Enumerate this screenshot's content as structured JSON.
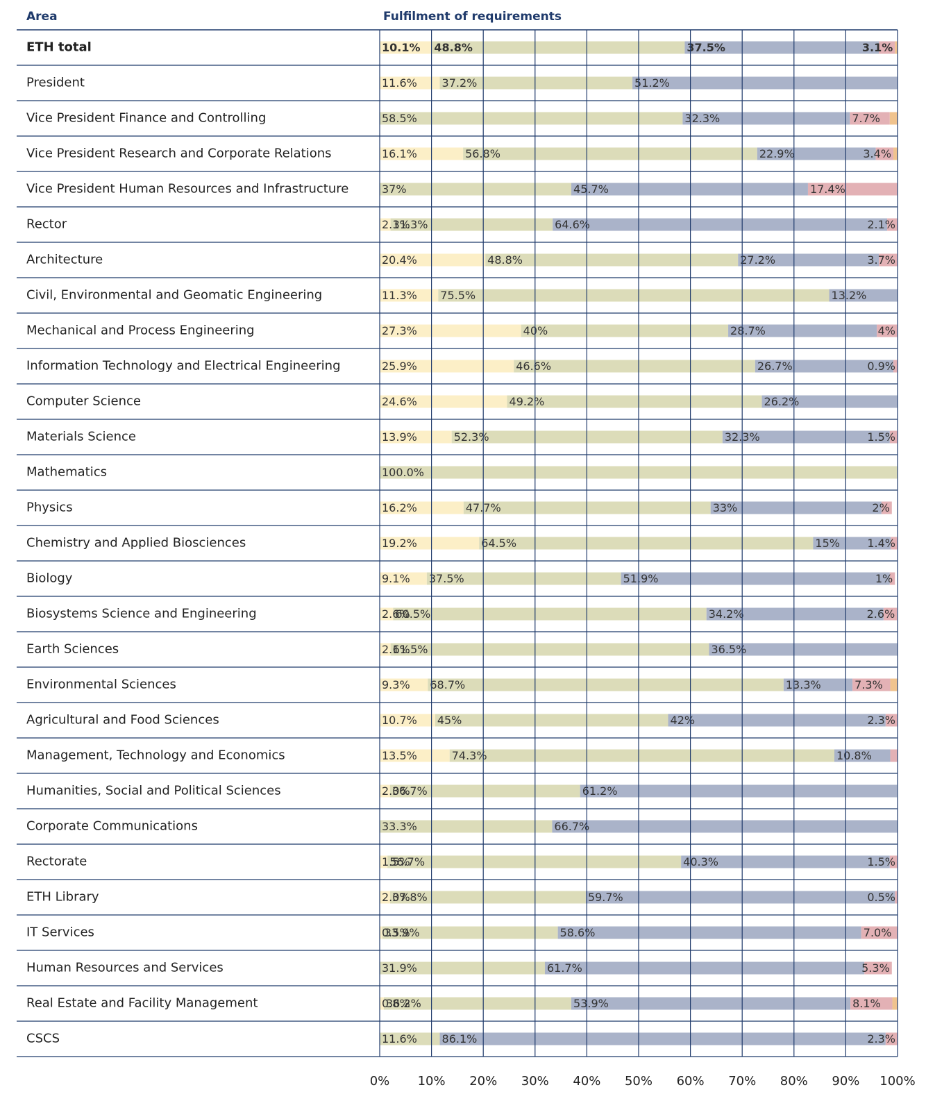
{
  "chart_data": {
    "type": "stacked-bar-horizontal",
    "category_header": "Area",
    "title": "Fulfilment of requirements",
    "bold_first_row": true,
    "categories": [
      "ETH total",
      "President",
      "Vice President Finance and Controlling",
      "Vice President Research and Corporate Relations",
      "Vice President Human Resources and Infrastructure",
      "Rector",
      "Architecture",
      "Civil, Environmental and Geomatic Engineering",
      "Mechanical and Process Engineering",
      "Information Technology and Electrical Engineering",
      "Computer Science",
      "Materials Science",
      "Mathematics",
      "Physics",
      "Chemistry and Applied Biosciences",
      "Biology",
      "Biosystems Science and Engineering",
      "Earth Sciences",
      "Environmental Sciences",
      "Agricultural and Food Sciences",
      "Management, Technology and Economics",
      "Humanities, Social and Political Sciences",
      "Corporate Communications",
      "Rectorate",
      "ETH Library",
      "IT Services",
      "Human Resources and Services",
      "Real Estate and Facility Management",
      "CSCS"
    ],
    "series": [
      {
        "color": "#fcefc7",
        "values": [
          10.1,
          11.6,
          null,
          16.1,
          null,
          2.1,
          20.4,
          11.3,
          27.3,
          25.9,
          24.6,
          13.9,
          null,
          16.2,
          19.2,
          9.1,
          2.6,
          2.1,
          9.3,
          10.7,
          13.5,
          2.0,
          null,
          1.5,
          2.0,
          0.5,
          null,
          0.8,
          null
        ],
        "value_labels": [
          "10.1%",
          "11.6%",
          null,
          "16.1%",
          null,
          "2.1%",
          "20.4%",
          "11.3%",
          "27.3%",
          "25.9%",
          "24.6%",
          "13.9%",
          null,
          "16.2%",
          "19.2%",
          "9.1%",
          "2.6%",
          "2.1%",
          "9.3%",
          "10.7%",
          "13.5%",
          "2.0%",
          null,
          "1.5%",
          "2.0%",
          "0.5%",
          null,
          "0.8%",
          null
        ]
      },
      {
        "color": "#dcdcb9",
        "values": [
          48.8,
          37.2,
          58.5,
          56.8,
          37,
          31.3,
          48.8,
          75.5,
          40,
          46.6,
          49.2,
          52.3,
          100.0,
          47.7,
          64.5,
          37.5,
          60.5,
          61.5,
          68.7,
          45,
          74.3,
          36.7,
          33.3,
          56.7,
          37.8,
          33.9,
          31.9,
          36.2,
          11.6
        ],
        "value_labels": [
          "48.8%",
          "37.2%",
          "58.5%",
          "56.8%",
          "37%",
          "31.3%",
          "48.8%",
          "75.5%",
          "40%",
          "46.6%",
          "49.2%",
          "52.3%",
          "100.0%",
          "47.7%",
          "64.5%",
          "37.5%",
          "60.5%",
          "61.5%",
          "68.7%",
          "45%",
          "74.3%",
          "36.7%",
          "33.3%",
          "56.7%",
          "37.8%",
          "33.9%",
          "31.9%",
          "36.2%",
          "11.6%"
        ]
      },
      {
        "color": "#aab3c9",
        "values": [
          37.5,
          51.2,
          32.3,
          22.9,
          45.7,
          64.6,
          27.2,
          13.2,
          28.7,
          26.7,
          26.2,
          32.3,
          null,
          33,
          15,
          51.9,
          34.2,
          36.5,
          13.3,
          42,
          10.8,
          61.2,
          66.7,
          40.3,
          59.7,
          58.6,
          61.7,
          53.9,
          86.1
        ],
        "value_labels": [
          "37.5%",
          "51.2%",
          "32.3%",
          "22.9%",
          "45.7%",
          "64.6%",
          "27.2%",
          "13.2%",
          "28.7%",
          "26.7%",
          "26.2%",
          "32.3%",
          null,
          "33%",
          "15%",
          "51.9%",
          "34.2%",
          "36.5%",
          "13.3%",
          "42%",
          "10.8%",
          "61.2%",
          "66.7%",
          "40.3%",
          "59.7%",
          "58.6%",
          "61.7%",
          "53.9%",
          "86.1%"
        ]
      },
      {
        "color": "#e3b1b5",
        "values": [
          3.1,
          null,
          7.7,
          3.4,
          17.4,
          2.1,
          3.7,
          null,
          4,
          0.9,
          null,
          1.5,
          null,
          2,
          1.4,
          1,
          2.6,
          null,
          7.3,
          2.3,
          1.4,
          null,
          null,
          1.5,
          0.5,
          7.0,
          5.3,
          8.1,
          2.3
        ],
        "value_labels": [
          "3.1%",
          null,
          "7.7%",
          "3.4%",
          "17.4%",
          "2.1%",
          "3.7%",
          null,
          "4%",
          "0.9%",
          null,
          "1.5%",
          null,
          "2%",
          "1.4%",
          "1%",
          "2.6%",
          null,
          "7.3%",
          "2.3%",
          null,
          null,
          null,
          "1.5%",
          "0.5%",
          "7.0%",
          "5.3%",
          "8.1%",
          "2.3%"
        ]
      },
      {
        "color": "#f0c38e",
        "values": [
          0.5,
          null,
          1.5,
          0.8,
          null,
          null,
          null,
          null,
          null,
          null,
          null,
          null,
          null,
          null,
          null,
          null,
          null,
          null,
          1.4,
          null,
          null,
          null,
          null,
          null,
          null,
          null,
          null,
          1.0,
          null
        ],
        "value_labels": [
          null,
          null,
          null,
          null,
          null,
          null,
          null,
          null,
          null,
          null,
          null,
          null,
          null,
          null,
          null,
          null,
          null,
          null,
          null,
          null,
          null,
          null,
          null,
          null,
          null,
          null,
          null,
          null,
          null
        ]
      }
    ],
    "xlim": [
      0,
      100
    ],
    "xticks": [
      {
        "value": 0,
        "label": "0%"
      },
      {
        "value": 10,
        "label": "10%"
      },
      {
        "value": 20,
        "label": "20%"
      },
      {
        "value": 30,
        "label": "30%"
      },
      {
        "value": 40,
        "label": "40%"
      },
      {
        "value": 50,
        "label": "50%"
      },
      {
        "value": 60,
        "label": "60%"
      },
      {
        "value": 70,
        "label": "70%"
      },
      {
        "value": 80,
        "label": "80%"
      },
      {
        "value": 90,
        "label": "90%"
      },
      {
        "value": 100,
        "label": "100%"
      }
    ],
    "grid": true,
    "grid_color": "#1f3a6b"
  }
}
